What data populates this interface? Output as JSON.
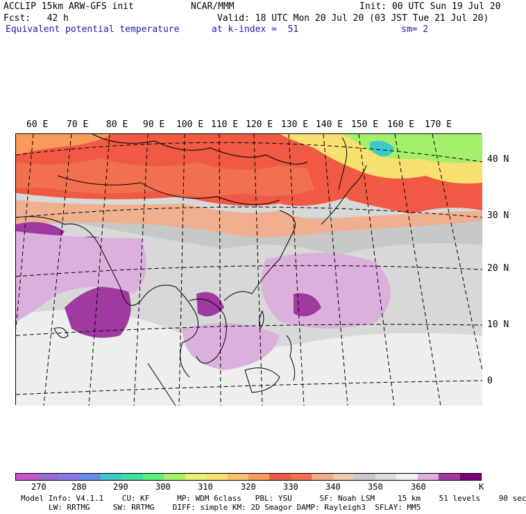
{
  "header": {
    "line1_left": "ACCLIP 15km ARW-GFS init",
    "line1_center": "NCAR/MMM",
    "line1_right": "Init: 00 UTC Sun 19 Jul 20",
    "line2_left": "Fcst:   42 h",
    "line2_right": "Valid: 18 UTC Mon 20 Jul 20 (03 JST Tue 21 Jul 20)",
    "line3_left": "Equivalent potential temperature",
    "line3_center": "at k-index =  51",
    "line3_right": "sm= 2"
  },
  "map": {
    "lon_labels": [
      "60 E",
      "70 E",
      "80 E",
      "90 E",
      "100 E",
      "110 E",
      "120 E",
      "130 E",
      "140 E",
      "150 E",
      "160 E",
      "170 E"
    ],
    "lat_labels": [
      "40 N",
      "30 N",
      "20 N",
      "10 N",
      "0"
    ]
  },
  "colorbar": {
    "colors": [
      "#cc55cc",
      "#9a6ad6",
      "#8a7ae8",
      "#6a8ee8",
      "#3ec8c8",
      "#3ee0a0",
      "#5ef07a",
      "#a4f06a",
      "#e8f070",
      "#f8e070",
      "#f8c070",
      "#f89a5a",
      "#f05a44",
      "#f07050",
      "#f0aa8a",
      "#f0c8b0",
      "#c8c8c8",
      "#dcdcdc",
      "#f0f0f0",
      "#dcb0dc",
      "#a03aa0",
      "#7a007a"
    ],
    "labels": [
      "270",
      "280",
      "290",
      "300",
      "310",
      "320",
      "330",
      "340",
      "350",
      "360"
    ],
    "unit": "K"
  },
  "model_info": {
    "line1": "Model Info: V4.1.1    CU: KF      MP: WDM 6class   PBL: YSU      SF: Noah LSM     15 km    51 levels    90 sec",
    "line2": "LW: RRTMG     SW: RRTMG    DIFF: simple KM: 2D Smagor DAMP: Rayleigh3  SFLAY: MM5"
  }
}
